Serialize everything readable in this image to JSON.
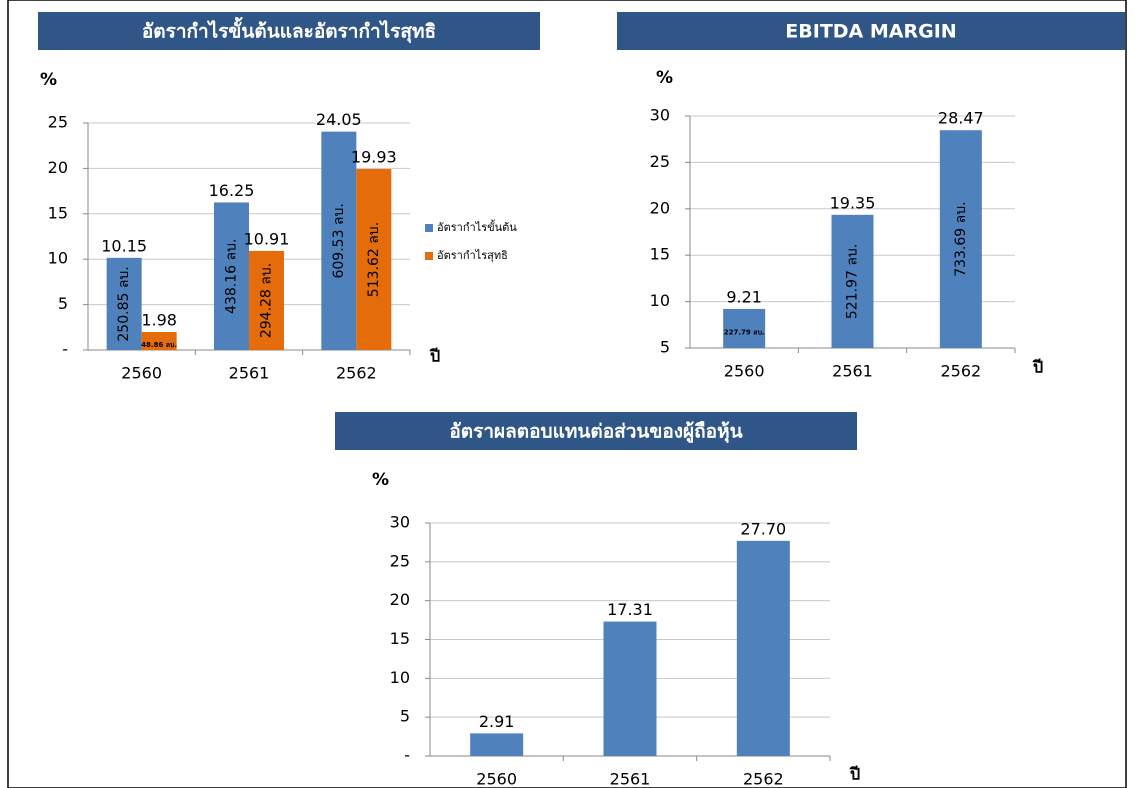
{
  "chart_data": [
    {
      "type": "bar",
      "title": "อัตรากำไรขั้นต้นและอัตรากำไรสุทธิ",
      "ylabel": "%",
      "xlabel": "ปี",
      "categories": [
        "2560",
        "2561",
        "2562"
      ],
      "series": [
        {
          "name": "อัตรากำไรขั้นต้น",
          "color": "#4f81bd",
          "values": [
            10.15,
            16.25,
            24.05
          ],
          "value_labels": [
            "10.15",
            "16.25",
            "24.05"
          ],
          "annotations": [
            "250.85 ลบ.",
            "438.16 ลบ.",
            "609.53 ลบ."
          ]
        },
        {
          "name": "อัตรากำไรสุทธิ",
          "color": "#e46c0a",
          "values": [
            1.98,
            10.91,
            19.93
          ],
          "value_labels": [
            "1.98",
            "10.91",
            "19.93"
          ],
          "annotations": [
            "48.86 ลบ.",
            "294.28 ลบ.",
            "513.62 ลบ."
          ]
        }
      ],
      "ylim": [
        0,
        25
      ],
      "yticks": [
        {
          "value": 0,
          "label": "-"
        },
        5,
        10,
        15,
        20,
        25
      ],
      "grid": true,
      "legend": "right"
    },
    {
      "type": "bar",
      "title": "EBITDA MARGIN",
      "ylabel": "%",
      "xlabel": "ปี",
      "categories": [
        "2560",
        "2561",
        "2562"
      ],
      "series": [
        {
          "color": "#4f81bd",
          "values": [
            9.21,
            19.35,
            28.47
          ],
          "value_labels": [
            "9.21",
            "19.35",
            "28.47"
          ],
          "annotations": [
            "227.79 ลบ.",
            "521.97 ลบ.",
            "733.69 ลบ."
          ]
        }
      ],
      "ylim": [
        5,
        30
      ],
      "yticks": [
        5,
        10,
        15,
        20,
        25,
        30
      ],
      "grid": true
    },
    {
      "type": "bar",
      "title": "อัตราผลตอบแทนต่อส่วนของผู้ถือหุ้น",
      "ylabel": "%",
      "xlabel": "ปี",
      "categories": [
        "2560",
        "2561",
        "2562"
      ],
      "series": [
        {
          "color": "#4f81bd",
          "values": [
            2.91,
            17.31,
            27.7
          ],
          "value_labels": [
            "2.91",
            "17.31",
            "27.70"
          ]
        }
      ],
      "ylim": [
        0,
        30
      ],
      "yticks": [
        {
          "value": 0,
          "label": "-"
        },
        5,
        10,
        15,
        20,
        25,
        30
      ],
      "grid": true
    }
  ]
}
